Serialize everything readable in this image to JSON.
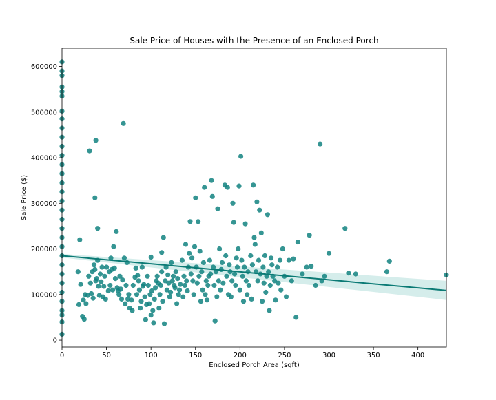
{
  "chart_data": {
    "type": "scatter",
    "title": "Sale Price of Houses with the Presence of an Enclosed Porch",
    "xlabel": "Enclosed Porch Area (sqft)",
    "ylabel": "Sale Price ($)",
    "xlim": [
      0,
      432
    ],
    "ylim": [
      -15000,
      640000
    ],
    "xticks": [
      0,
      50,
      100,
      150,
      200,
      250,
      300,
      350,
      400
    ],
    "yticks": [
      0,
      100000,
      200000,
      300000,
      400000,
      500000,
      600000
    ],
    "grid": false,
    "legend": "none",
    "colors": {
      "points": "#128280",
      "line": "#0b7a75",
      "band": "#b3dedb"
    },
    "regression": {
      "x": [
        0,
        432
      ],
      "y": [
        185000,
        109000
      ],
      "ci_low": [
        181000,
        88000
      ],
      "ci_high": [
        189000,
        130000
      ]
    },
    "series": [
      {
        "values": [
          [
            0,
            610000
          ],
          [
            0,
            590000
          ],
          [
            0,
            580000
          ],
          [
            0,
            555000
          ],
          [
            0,
            545000
          ],
          [
            0,
            535000
          ],
          [
            0,
            502000
          ],
          [
            0,
            485000
          ],
          [
            0,
            465000
          ],
          [
            0,
            445000
          ],
          [
            0,
            425000
          ],
          [
            0,
            405000
          ],
          [
            0,
            385000
          ],
          [
            0,
            365000
          ],
          [
            0,
            345000
          ],
          [
            0,
            325000
          ],
          [
            0,
            305000
          ],
          [
            0,
            285000
          ],
          [
            0,
            265000
          ],
          [
            0,
            245000
          ],
          [
            0,
            225000
          ],
          [
            0,
            205000
          ],
          [
            0,
            185000
          ],
          [
            0,
            165000
          ],
          [
            0,
            145000
          ],
          [
            0,
            125000
          ],
          [
            0,
            105000
          ],
          [
            0,
            85000
          ],
          [
            0,
            65000
          ],
          [
            0,
            55000
          ],
          [
            0,
            40000
          ],
          [
            0,
            13000
          ],
          [
            18,
            150000
          ],
          [
            19,
            78000
          ],
          [
            20,
            220000
          ],
          [
            21,
            122000
          ],
          [
            23,
            52000
          ],
          [
            24,
            88000
          ],
          [
            25,
            46000
          ],
          [
            26,
            100000
          ],
          [
            27,
            80000
          ],
          [
            29,
            98000
          ],
          [
            30,
            140000
          ],
          [
            31,
            415000
          ],
          [
            32,
            125000
          ],
          [
            33,
            102000
          ],
          [
            34,
            150000
          ],
          [
            35,
            92000
          ],
          [
            36,
            165000
          ],
          [
            37,
            312000
          ],
          [
            37,
            155000
          ],
          [
            38,
            438000
          ],
          [
            38,
            130000
          ],
          [
            39,
            135000
          ],
          [
            40,
            245000
          ],
          [
            40,
            175000
          ],
          [
            41,
            118000
          ],
          [
            42,
            98000
          ],
          [
            43,
            145000
          ],
          [
            44,
            128000
          ],
          [
            45,
            160000
          ],
          [
            46,
            95000
          ],
          [
            47,
            118000
          ],
          [
            48,
            140000
          ],
          [
            49,
            90000
          ],
          [
            50,
            160000
          ],
          [
            52,
            108000
          ],
          [
            53,
            150000
          ],
          [
            54,
            120000
          ],
          [
            55,
            180000
          ],
          [
            56,
            155000
          ],
          [
            57,
            110000
          ],
          [
            58,
            205000
          ],
          [
            59,
            158000
          ],
          [
            60,
            135000
          ],
          [
            61,
            238000
          ],
          [
            62,
            115000
          ],
          [
            63,
            108000
          ],
          [
            64,
            100000
          ],
          [
            65,
            140000
          ],
          [
            66,
            112000
          ],
          [
            67,
            90000
          ],
          [
            68,
            132000
          ],
          [
            69,
            475000
          ],
          [
            70,
            180000
          ],
          [
            71,
            80000
          ],
          [
            72,
            120000
          ],
          [
            73,
            170000
          ],
          [
            74,
            90000
          ],
          [
            75,
            100000
          ],
          [
            76,
            70000
          ],
          [
            78,
            88000
          ],
          [
            79,
            65000
          ],
          [
            80,
            120000
          ],
          [
            82,
            138000
          ],
          [
            83,
            158000
          ],
          [
            84,
            100000
          ],
          [
            85,
            142000
          ],
          [
            86,
            130000
          ],
          [
            87,
            110000
          ],
          [
            88,
            70000
          ],
          [
            89,
            85000
          ],
          [
            90,
            160000
          ],
          [
            91,
            118000
          ],
          [
            92,
            122000
          ],
          [
            93,
            95000
          ],
          [
            94,
            45000
          ],
          [
            95,
            78000
          ],
          [
            96,
            140000
          ],
          [
            97,
            120000
          ],
          [
            98,
            80000
          ],
          [
            99,
            100000
          ],
          [
            100,
            55000
          ],
          [
            100,
            182000
          ],
          [
            101,
            108000
          ],
          [
            102,
            65000
          ],
          [
            103,
            38000
          ],
          [
            104,
            90000
          ],
          [
            105,
            115000
          ],
          [
            106,
            130000
          ],
          [
            107,
            140000
          ],
          [
            108,
            125000
          ],
          [
            109,
            70000
          ],
          [
            110,
            100000
          ],
          [
            111,
            120000
          ],
          [
            112,
            150000
          ],
          [
            112,
            192000
          ],
          [
            113,
            85000
          ],
          [
            114,
            225000
          ],
          [
            115,
            36000
          ],
          [
            116,
            130000
          ],
          [
            117,
            160000
          ],
          [
            118,
            110000
          ],
          [
            119,
            143000
          ],
          [
            120,
            125000
          ],
          [
            121,
            95000
          ],
          [
            122,
            105000
          ],
          [
            123,
            170000
          ],
          [
            124,
            130000
          ],
          [
            125,
            140000
          ],
          [
            126,
            120000
          ],
          [
            127,
            115000
          ],
          [
            128,
            150000
          ],
          [
            129,
            80000
          ],
          [
            130,
            135000
          ],
          [
            131,
            100000
          ],
          [
            132,
            110000
          ],
          [
            133,
            122000
          ],
          [
            135,
            175000
          ],
          [
            136,
            95000
          ],
          [
            137,
            140000
          ],
          [
            138,
            120000
          ],
          [
            139,
            210000
          ],
          [
            140,
            130000
          ],
          [
            141,
            108000
          ],
          [
            142,
            160000
          ],
          [
            143,
            190000
          ],
          [
            144,
            260000
          ],
          [
            145,
            145000
          ],
          [
            146,
            180000
          ],
          [
            147,
            130000
          ],
          [
            148,
            100000
          ],
          [
            149,
            205000
          ],
          [
            150,
            312000
          ],
          [
            151,
            160000
          ],
          [
            152,
            125000
          ],
          [
            153,
            260000
          ],
          [
            154,
            140000
          ],
          [
            155,
            195000
          ],
          [
            156,
            85000
          ],
          [
            157,
            150000
          ],
          [
            158,
            110000
          ],
          [
            159,
            170000
          ],
          [
            160,
            335000
          ],
          [
            161,
            100000
          ],
          [
            162,
            130000
          ],
          [
            163,
            88000
          ],
          [
            164,
            120000
          ],
          [
            165,
            140000
          ],
          [
            166,
            175000
          ],
          [
            167,
            145000
          ],
          [
            168,
            350000
          ],
          [
            169,
            315000
          ],
          [
            170,
            160000
          ],
          [
            171,
            120000
          ],
          [
            172,
            42000
          ],
          [
            173,
            150000
          ],
          [
            174,
            95000
          ],
          [
            175,
            288000
          ],
          [
            176,
            130000
          ],
          [
            177,
            200000
          ],
          [
            178,
            110000
          ],
          [
            179,
            155000
          ],
          [
            180,
            170000
          ],
          [
            181,
            125000
          ],
          [
            183,
            340000
          ],
          [
            184,
            185000
          ],
          [
            185,
            140000
          ],
          [
            186,
            335000
          ],
          [
            187,
            100000
          ],
          [
            188,
            165000
          ],
          [
            189,
            150000
          ],
          [
            190,
            95000
          ],
          [
            191,
            130000
          ],
          [
            192,
            300000
          ],
          [
            193,
            258000
          ],
          [
            194,
            145000
          ],
          [
            195,
            120000
          ],
          [
            196,
            180000
          ],
          [
            197,
            160000
          ],
          [
            198,
            200000
          ],
          [
            199,
            338000
          ],
          [
            200,
            110000
          ],
          [
            201,
            403000
          ],
          [
            202,
            175000
          ],
          [
            203,
            140000
          ],
          [
            204,
            85000
          ],
          [
            205,
            160000
          ],
          [
            206,
            255000
          ],
          [
            207,
            130000
          ],
          [
            208,
            100000
          ],
          [
            209,
            150000
          ],
          [
            210,
            120000
          ],
          [
            212,
            185000
          ],
          [
            213,
            90000
          ],
          [
            214,
            165000
          ],
          [
            215,
            340000
          ],
          [
            216,
            225000
          ],
          [
            217,
            210000
          ],
          [
            218,
            150000
          ],
          [
            219,
            303000
          ],
          [
            220,
            130000
          ],
          [
            221,
            175000
          ],
          [
            222,
            285000
          ],
          [
            223,
            145000
          ],
          [
            224,
            235000
          ],
          [
            225,
            85000
          ],
          [
            226,
            160000
          ],
          [
            227,
            125000
          ],
          [
            228,
            185000
          ],
          [
            229,
            105000
          ],
          [
            230,
            140000
          ],
          [
            231,
            275000
          ],
          [
            232,
            150000
          ],
          [
            233,
            65000
          ],
          [
            234,
            120000
          ],
          [
            235,
            180000
          ],
          [
            236,
            165000
          ],
          [
            237,
            140000
          ],
          [
            239,
            130000
          ],
          [
            240,
            88000
          ],
          [
            242,
            160000
          ],
          [
            243,
            125000
          ],
          [
            245,
            175000
          ],
          [
            246,
            110000
          ],
          [
            248,
            200000
          ],
          [
            250,
            140000
          ],
          [
            252,
            95000
          ],
          [
            255,
            175000
          ],
          [
            258,
            130000
          ],
          [
            260,
            178000
          ],
          [
            263,
            50000
          ],
          [
            265,
            215000
          ],
          [
            270,
            145000
          ],
          [
            275,
            160000
          ],
          [
            278,
            230000
          ],
          [
            280,
            162000
          ],
          [
            285,
            120000
          ],
          [
            290,
            430000
          ],
          [
            292,
            130000
          ],
          [
            295,
            140000
          ],
          [
            300,
            190000
          ],
          [
            318,
            245000
          ],
          [
            322,
            147000
          ],
          [
            330,
            145000
          ],
          [
            365,
            150000
          ],
          [
            368,
            173000
          ],
          [
            432,
            143000
          ]
        ]
      }
    ]
  }
}
